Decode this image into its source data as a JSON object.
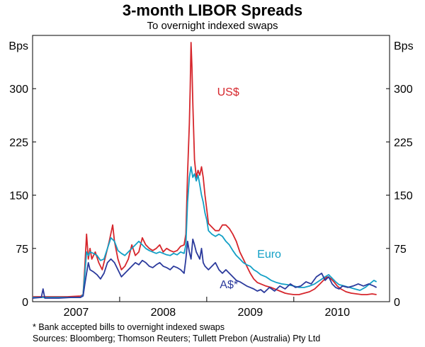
{
  "chart_data": {
    "type": "line",
    "title": "3-month LIBOR Spreads",
    "subtitle": "To overnight indexed swaps",
    "ylabel_left": "Bps",
    "ylabel_right": "Bps",
    "ylim": [
      0,
      375
    ],
    "xlim": [
      2006.5,
      2010.6
    ],
    "y_ticks": [
      0,
      75,
      150,
      225,
      300
    ],
    "y_tick_labels": [
      "0",
      "75",
      "150",
      "225",
      "300"
    ],
    "x_tick_values": [
      2007,
      2008,
      2009,
      2010
    ],
    "x_tick_labels": [
      "2007",
      "2008",
      "2009",
      "2010"
    ],
    "x_year_boundaries": [
      2007.5,
      2008.5,
      2009.5
    ],
    "series": [
      {
        "name": "US$",
        "color": "#d6262c",
        "label_pos": [
          2008.62,
          290
        ],
        "points": [
          [
            2006.5,
            7
          ],
          [
            2006.7,
            7
          ],
          [
            2006.9,
            7
          ],
          [
            2007.05,
            8
          ],
          [
            2007.08,
            10
          ],
          [
            2007.1,
            50
          ],
          [
            2007.12,
            95
          ],
          [
            2007.14,
            60
          ],
          [
            2007.16,
            75
          ],
          [
            2007.18,
            60
          ],
          [
            2007.22,
            70
          ],
          [
            2007.26,
            55
          ],
          [
            2007.3,
            45
          ],
          [
            2007.34,
            65
          ],
          [
            2007.38,
            85
          ],
          [
            2007.42,
            108
          ],
          [
            2007.44,
            85
          ],
          [
            2007.48,
            60
          ],
          [
            2007.52,
            45
          ],
          [
            2007.56,
            50
          ],
          [
            2007.6,
            60
          ],
          [
            2007.64,
            80
          ],
          [
            2007.68,
            65
          ],
          [
            2007.72,
            70
          ],
          [
            2007.76,
            90
          ],
          [
            2007.8,
            80
          ],
          [
            2007.84,
            75
          ],
          [
            2007.88,
            72
          ],
          [
            2007.92,
            75
          ],
          [
            2007.96,
            80
          ],
          [
            2008.0,
            70
          ],
          [
            2008.04,
            75
          ],
          [
            2008.08,
            72
          ],
          [
            2008.12,
            70
          ],
          [
            2008.16,
            72
          ],
          [
            2008.2,
            78
          ],
          [
            2008.24,
            80
          ],
          [
            2008.26,
            95
          ],
          [
            2008.28,
            180
          ],
          [
            2008.3,
            250
          ],
          [
            2008.31,
            300
          ],
          [
            2008.32,
            365
          ],
          [
            2008.33,
            330
          ],
          [
            2008.34,
            280
          ],
          [
            2008.36,
            200
          ],
          [
            2008.38,
            175
          ],
          [
            2008.4,
            185
          ],
          [
            2008.42,
            178
          ],
          [
            2008.44,
            190
          ],
          [
            2008.46,
            175
          ],
          [
            2008.48,
            150
          ],
          [
            2008.5,
            130
          ],
          [
            2008.52,
            110
          ],
          [
            2008.56,
            105
          ],
          [
            2008.6,
            100
          ],
          [
            2008.64,
            100
          ],
          [
            2008.68,
            108
          ],
          [
            2008.72,
            108
          ],
          [
            2008.76,
            103
          ],
          [
            2008.8,
            95
          ],
          [
            2008.84,
            85
          ],
          [
            2008.88,
            70
          ],
          [
            2008.92,
            60
          ],
          [
            2008.96,
            50
          ],
          [
            2009.0,
            40
          ],
          [
            2009.04,
            32
          ],
          [
            2009.08,
            27
          ],
          [
            2009.12,
            25
          ],
          [
            2009.18,
            22
          ],
          [
            2009.24,
            20
          ],
          [
            2009.3,
            17
          ],
          [
            2009.36,
            14
          ],
          [
            2009.4,
            12
          ],
          [
            2009.44,
            11
          ],
          [
            2009.5,
            10
          ],
          [
            2009.56,
            10
          ],
          [
            2009.62,
            12
          ],
          [
            2009.68,
            14
          ],
          [
            2009.74,
            18
          ],
          [
            2009.8,
            25
          ],
          [
            2009.84,
            30
          ],
          [
            2009.88,
            35
          ],
          [
            2009.92,
            33
          ],
          [
            2009.96,
            28
          ],
          [
            2010.0,
            22
          ],
          [
            2010.04,
            18
          ],
          [
            2010.1,
            14
          ],
          [
            2010.16,
            12
          ],
          [
            2010.22,
            11
          ],
          [
            2010.28,
            10
          ],
          [
            2010.34,
            10
          ],
          [
            2010.4,
            11
          ],
          [
            2010.45,
            10
          ]
        ]
      },
      {
        "name": "Euro",
        "color": "#13a0c6",
        "label_pos": [
          2009.08,
          62
        ],
        "points": [
          [
            2006.5,
            6
          ],
          [
            2006.7,
            6
          ],
          [
            2006.9,
            6
          ],
          [
            2007.05,
            6
          ],
          [
            2007.08,
            10
          ],
          [
            2007.1,
            40
          ],
          [
            2007.12,
            70
          ],
          [
            2007.14,
            65
          ],
          [
            2007.16,
            70
          ],
          [
            2007.2,
            68
          ],
          [
            2007.24,
            65
          ],
          [
            2007.28,
            58
          ],
          [
            2007.32,
            60
          ],
          [
            2007.36,
            75
          ],
          [
            2007.4,
            90
          ],
          [
            2007.44,
            85
          ],
          [
            2007.48,
            72
          ],
          [
            2007.52,
            68
          ],
          [
            2007.56,
            65
          ],
          [
            2007.6,
            70
          ],
          [
            2007.64,
            75
          ],
          [
            2007.68,
            80
          ],
          [
            2007.72,
            85
          ],
          [
            2007.76,
            80
          ],
          [
            2007.8,
            75
          ],
          [
            2007.84,
            72
          ],
          [
            2007.88,
            70
          ],
          [
            2007.92,
            68
          ],
          [
            2007.96,
            70
          ],
          [
            2008.0,
            68
          ],
          [
            2008.04,
            66
          ],
          [
            2008.08,
            65
          ],
          [
            2008.12,
            68
          ],
          [
            2008.16,
            66
          ],
          [
            2008.2,
            70
          ],
          [
            2008.24,
            68
          ],
          [
            2008.26,
            80
          ],
          [
            2008.28,
            140
          ],
          [
            2008.3,
            175
          ],
          [
            2008.32,
            190
          ],
          [
            2008.34,
            175
          ],
          [
            2008.36,
            180
          ],
          [
            2008.38,
            170
          ],
          [
            2008.4,
            178
          ],
          [
            2008.42,
            165
          ],
          [
            2008.44,
            150
          ],
          [
            2008.46,
            140
          ],
          [
            2008.48,
            125
          ],
          [
            2008.5,
            115
          ],
          [
            2008.52,
            100
          ],
          [
            2008.56,
            95
          ],
          [
            2008.6,
            92
          ],
          [
            2008.64,
            95
          ],
          [
            2008.68,
            92
          ],
          [
            2008.72,
            85
          ],
          [
            2008.76,
            80
          ],
          [
            2008.8,
            72
          ],
          [
            2008.84,
            65
          ],
          [
            2008.88,
            60
          ],
          [
            2008.92,
            55
          ],
          [
            2008.96,
            52
          ],
          [
            2009.0,
            50
          ],
          [
            2009.04,
            45
          ],
          [
            2009.08,
            42
          ],
          [
            2009.12,
            38
          ],
          [
            2009.18,
            35
          ],
          [
            2009.24,
            30
          ],
          [
            2009.3,
            27
          ],
          [
            2009.36,
            25
          ],
          [
            2009.42,
            24
          ],
          [
            2009.5,
            22
          ],
          [
            2009.56,
            20
          ],
          [
            2009.62,
            20
          ],
          [
            2009.68,
            22
          ],
          [
            2009.74,
            25
          ],
          [
            2009.8,
            30
          ],
          [
            2009.86,
            35
          ],
          [
            2009.9,
            38
          ],
          [
            2009.94,
            33
          ],
          [
            2009.98,
            28
          ],
          [
            2010.02,
            24
          ],
          [
            2010.08,
            22
          ],
          [
            2010.14,
            20
          ],
          [
            2010.2,
            18
          ],
          [
            2010.26,
            16
          ],
          [
            2010.32,
            20
          ],
          [
            2010.38,
            26
          ],
          [
            2010.42,
            30
          ],
          [
            2010.45,
            28
          ]
        ]
      },
      {
        "name": "A$*",
        "color": "#2b3a9c",
        "label_pos": [
          2008.65,
          19
        ],
        "points": [
          [
            2006.5,
            5
          ],
          [
            2006.6,
            6
          ],
          [
            2006.62,
            18
          ],
          [
            2006.64,
            5
          ],
          [
            2006.8,
            5
          ],
          [
            2006.95,
            6
          ],
          [
            2007.05,
            6
          ],
          [
            2007.08,
            8
          ],
          [
            2007.1,
            25
          ],
          [
            2007.12,
            40
          ],
          [
            2007.14,
            55
          ],
          [
            2007.16,
            45
          ],
          [
            2007.2,
            42
          ],
          [
            2007.24,
            38
          ],
          [
            2007.28,
            32
          ],
          [
            2007.32,
            40
          ],
          [
            2007.36,
            55
          ],
          [
            2007.4,
            60
          ],
          [
            2007.44,
            55
          ],
          [
            2007.48,
            45
          ],
          [
            2007.52,
            35
          ],
          [
            2007.56,
            40
          ],
          [
            2007.6,
            45
          ],
          [
            2007.64,
            50
          ],
          [
            2007.68,
            55
          ],
          [
            2007.72,
            52
          ],
          [
            2007.76,
            58
          ],
          [
            2007.8,
            55
          ],
          [
            2007.84,
            50
          ],
          [
            2007.88,
            48
          ],
          [
            2007.92,
            52
          ],
          [
            2007.96,
            55
          ],
          [
            2008.0,
            50
          ],
          [
            2008.04,
            48
          ],
          [
            2008.08,
            45
          ],
          [
            2008.12,
            50
          ],
          [
            2008.16,
            48
          ],
          [
            2008.2,
            45
          ],
          [
            2008.24,
            40
          ],
          [
            2008.26,
            60
          ],
          [
            2008.28,
            85
          ],
          [
            2008.3,
            70
          ],
          [
            2008.32,
            60
          ],
          [
            2008.34,
            88
          ],
          [
            2008.36,
            80
          ],
          [
            2008.38,
            70
          ],
          [
            2008.4,
            65
          ],
          [
            2008.42,
            60
          ],
          [
            2008.44,
            75
          ],
          [
            2008.46,
            55
          ],
          [
            2008.48,
            50
          ],
          [
            2008.52,
            45
          ],
          [
            2008.56,
            50
          ],
          [
            2008.6,
            55
          ],
          [
            2008.64,
            45
          ],
          [
            2008.68,
            40
          ],
          [
            2008.72,
            45
          ],
          [
            2008.76,
            40
          ],
          [
            2008.8,
            35
          ],
          [
            2008.84,
            30
          ],
          [
            2008.88,
            28
          ],
          [
            2008.92,
            25
          ],
          [
            2008.96,
            22
          ],
          [
            2009.0,
            20
          ],
          [
            2009.04,
            18
          ],
          [
            2009.08,
            15
          ],
          [
            2009.12,
            17
          ],
          [
            2009.16,
            13
          ],
          [
            2009.22,
            20
          ],
          [
            2009.28,
            15
          ],
          [
            2009.34,
            22
          ],
          [
            2009.4,
            18
          ],
          [
            2009.46,
            25
          ],
          [
            2009.52,
            20
          ],
          [
            2009.58,
            22
          ],
          [
            2009.64,
            28
          ],
          [
            2009.7,
            25
          ],
          [
            2009.76,
            35
          ],
          [
            2009.82,
            40
          ],
          [
            2009.86,
            30
          ],
          [
            2009.9,
            35
          ],
          [
            2009.94,
            25
          ],
          [
            2009.98,
            20
          ],
          [
            2010.02,
            18
          ],
          [
            2010.06,
            22
          ],
          [
            2010.12,
            20
          ],
          [
            2010.18,
            22
          ],
          [
            2010.24,
            25
          ],
          [
            2010.3,
            22
          ],
          [
            2010.36,
            25
          ],
          [
            2010.42,
            22
          ],
          [
            2010.45,
            20
          ]
        ]
      }
    ]
  },
  "footnotes": {
    "note": "*   Bank accepted bills to overnight indexed swaps",
    "sources": "Sources: Bloomberg; Thomson Reuters; Tullett Prebon (Australia) Pty Ltd"
  }
}
